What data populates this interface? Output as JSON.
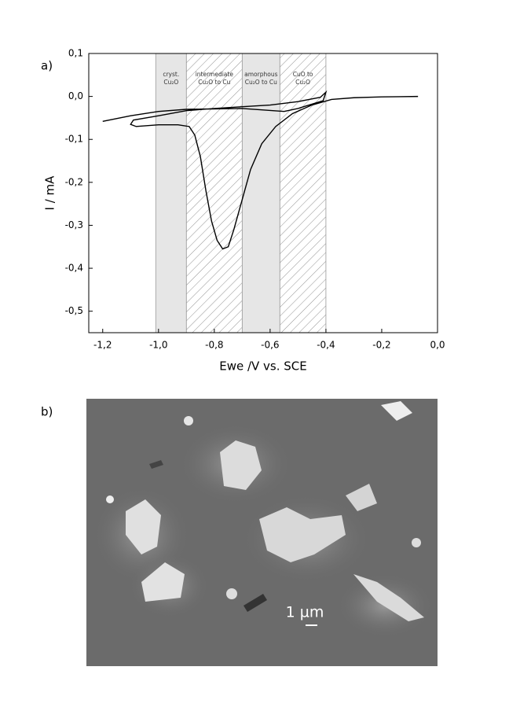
{
  "chart_data": {
    "type": "line",
    "panel_label": "a)",
    "xlabel": "Ewe /V vs. SCE",
    "ylabel": "I / mA",
    "xlim": [
      -1.25,
      0.0
    ],
    "ylim": [
      -0.55,
      0.1
    ],
    "xticks": [
      {
        "value": -1.2,
        "label": "-1,2"
      },
      {
        "value": -1.0,
        "label": "-1,0"
      },
      {
        "value": -0.8,
        "label": "-0,8"
      },
      {
        "value": -0.6,
        "label": "-0,6"
      },
      {
        "value": -0.4,
        "label": "-0,4"
      },
      {
        "value": -0.2,
        "label": "-0,2"
      },
      {
        "value": 0.0,
        "label": "0,0"
      }
    ],
    "yticks": [
      {
        "value": 0.1,
        "label": "0,1"
      },
      {
        "value": 0.0,
        "label": "0,0"
      },
      {
        "value": -0.1,
        "label": "-0,1"
      },
      {
        "value": -0.2,
        "label": "-0,2"
      },
      {
        "value": -0.3,
        "label": "-0,3"
      },
      {
        "value": -0.4,
        "label": "-0,4"
      },
      {
        "value": -0.5,
        "label": "-0,5"
      }
    ],
    "regions": [
      {
        "label": [
          "cryst.",
          "Cu₂O"
        ],
        "x0": -1.01,
        "x1": -0.9,
        "hatch": false
      },
      {
        "label": [
          "intermediate",
          "Cu₂O to Cu"
        ],
        "x0": -0.9,
        "x1": -0.7,
        "hatch": true
      },
      {
        "label": [
          "amorphous",
          "Cu₂O to Cu"
        ],
        "x0": -0.7,
        "x1": -0.565,
        "hatch": false
      },
      {
        "label": [
          "CuO to",
          "Cu₂O"
        ],
        "x0": -0.565,
        "x1": -0.4,
        "hatch": true
      }
    ],
    "series": [
      {
        "color": "#000000",
        "x": [
          -0.07,
          -0.2,
          -0.3,
          -0.38,
          -0.45,
          -0.52,
          -0.58,
          -0.63,
          -0.67,
          -0.7,
          -0.73,
          -0.75,
          -0.77,
          -0.79,
          -0.81,
          -0.83,
          -0.85,
          -0.87,
          -0.89,
          -0.93,
          -1.0,
          -1.08,
          -1.1,
          -1.09,
          -1.0,
          -0.9,
          -0.8,
          -0.7,
          -0.6,
          -0.5,
          -0.42,
          -0.4,
          -0.41,
          -0.5,
          -0.55,
          -0.7,
          -0.9,
          -1.0,
          -1.1,
          -1.2
        ],
        "values": [
          0.0,
          -0.001,
          -0.003,
          -0.007,
          -0.02,
          -0.04,
          -0.07,
          -0.11,
          -0.17,
          -0.24,
          -0.31,
          -0.35,
          -0.355,
          -0.335,
          -0.29,
          -0.22,
          -0.14,
          -0.09,
          -0.07,
          -0.066,
          -0.066,
          -0.07,
          -0.065,
          -0.055,
          -0.045,
          -0.033,
          -0.028,
          -0.024,
          -0.02,
          -0.012,
          -0.002,
          0.01,
          -0.01,
          -0.028,
          -0.035,
          -0.028,
          -0.03,
          -0.035,
          -0.045,
          -0.058
        ]
      }
    ]
  },
  "image_panel": {
    "panel_label": "b)",
    "scale_bar": "1 µm"
  }
}
